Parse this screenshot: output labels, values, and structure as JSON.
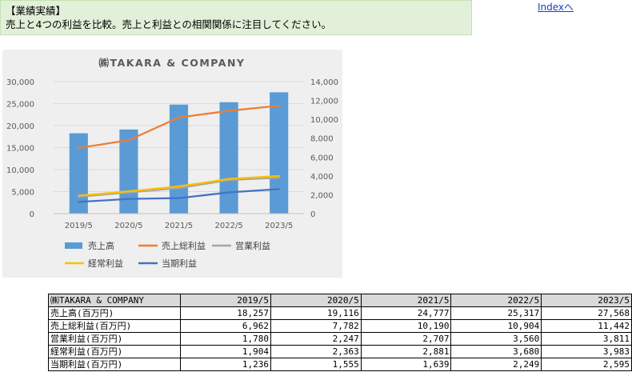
{
  "note": {
    "title": "【業績実績】",
    "body": "売上と4つの利益を比較。売上と利益との相関関係に注目してください。"
  },
  "index_link": "Indexへ",
  "chart_data": {
    "type": "bar",
    "title": "㈱TAKARA & COMPANY",
    "categories": [
      "2019/5",
      "2020/5",
      "2021/5",
      "2022/5",
      "2023/5"
    ],
    "series": [
      {
        "name": "売上高",
        "type": "bar",
        "axis": "left",
        "color": "#5b9bd5",
        "values": [
          18257,
          19116,
          24777,
          25317,
          27568
        ]
      },
      {
        "name": "売上総利益",
        "type": "line",
        "axis": "right",
        "color": "#ed7d31",
        "values": [
          6962,
          7782,
          10190,
          10904,
          11442
        ]
      },
      {
        "name": "営業利益",
        "type": "line",
        "axis": "right",
        "color": "#a5a5a5",
        "values": [
          1780,
          2247,
          2707,
          3560,
          3811
        ]
      },
      {
        "name": "経常利益",
        "type": "line",
        "axis": "right",
        "color": "#ffc000",
        "values": [
          1904,
          2363,
          2881,
          3680,
          3983
        ]
      },
      {
        "name": "当期利益",
        "type": "line",
        "axis": "right",
        "color": "#4472c4",
        "values": [
          1236,
          1555,
          1639,
          2249,
          2595
        ]
      }
    ],
    "ylim_left": [
      0,
      30000
    ],
    "yticks_left": [
      "0",
      "5,000",
      "10,000",
      "15,000",
      "20,000",
      "25,000",
      "30,000"
    ],
    "ylim_right": [
      0,
      14000
    ],
    "yticks_right": [
      "0",
      "2,000",
      "4,000",
      "6,000",
      "8,000",
      "10,000",
      "12,000",
      "14,000"
    ],
    "grid": true,
    "legend_position": "bottom"
  },
  "table": {
    "header": [
      "㈱TAKARA & COMPANY",
      "2019/5",
      "2020/5",
      "2021/5",
      "2022/5",
      "2023/5"
    ],
    "rows": [
      [
        "売上高(百万円)",
        "18,257",
        "19,116",
        "24,777",
        "25,317",
        "27,568"
      ],
      [
        "売上総利益(百万円)",
        "6,962",
        "7,782",
        "10,190",
        "10,904",
        "11,442"
      ],
      [
        "営業利益(百万円)",
        "1,780",
        "2,247",
        "2,707",
        "3,560",
        "3,811"
      ],
      [
        "経常利益(百万円)",
        "1,904",
        "2,363",
        "2,881",
        "3,680",
        "3,983"
      ],
      [
        "当期利益(百万円)",
        "1,236",
        "1,555",
        "1,639",
        "2,249",
        "2,595"
      ]
    ]
  }
}
